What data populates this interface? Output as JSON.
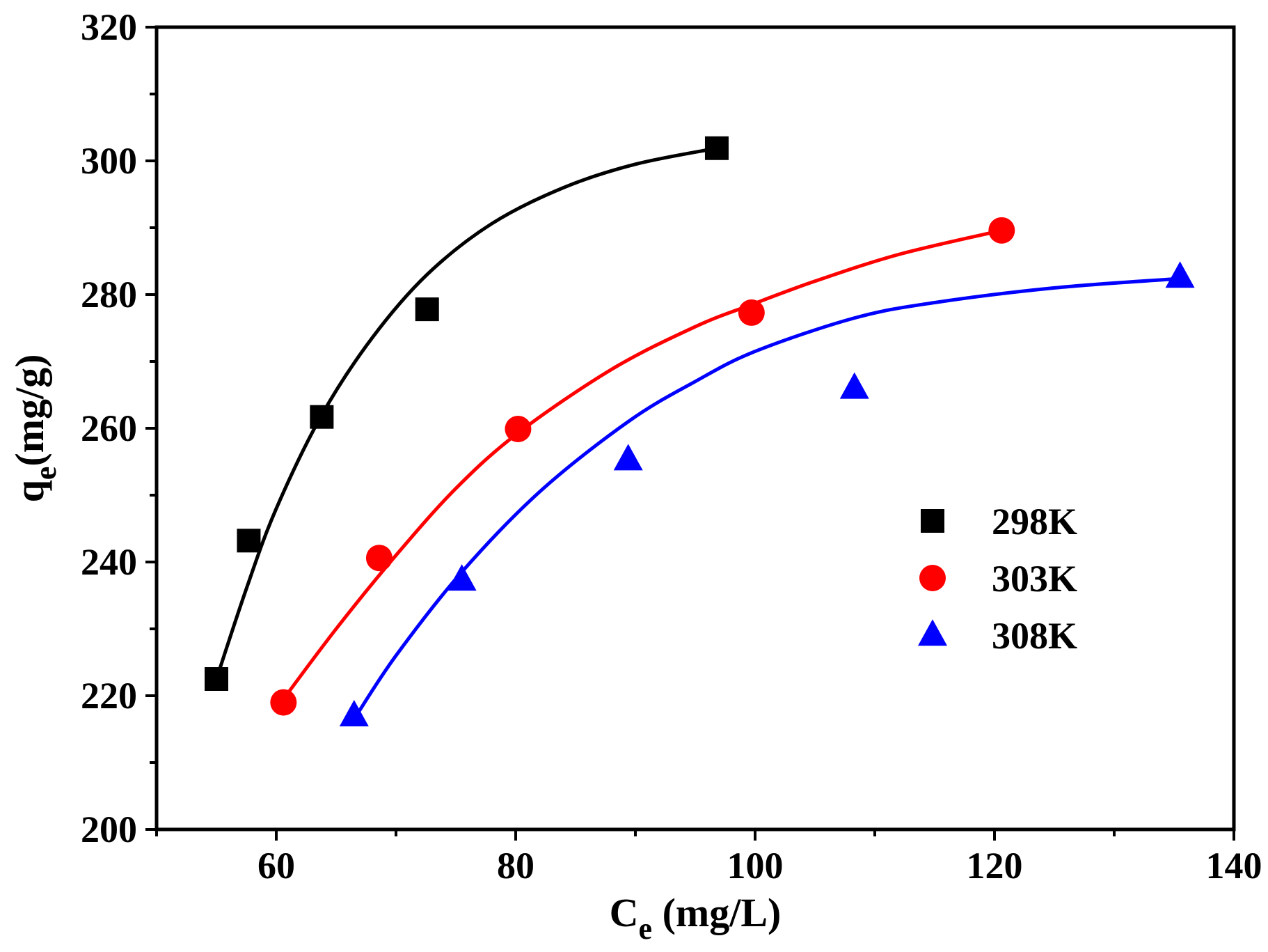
{
  "chart_data": {
    "type": "scatter",
    "xlabel": {
      "main": "C",
      "sub": "e",
      "rest": " (mg/L)"
    },
    "ylabel": {
      "main": "q",
      "sub": "e",
      "rest": "(mg/g)"
    },
    "xlim": [
      50,
      140
    ],
    "ylim": [
      200,
      320
    ],
    "x_ticks": [
      60,
      80,
      100,
      120,
      140
    ],
    "y_ticks": [
      200,
      220,
      240,
      260,
      280,
      300,
      320
    ],
    "x_tick_labels": [
      "60",
      "80",
      "100",
      "120",
      "140"
    ],
    "y_tick_labels": [
      "200",
      "220",
      "240",
      "260",
      "280",
      "300",
      "320"
    ],
    "legend_position": "center-right",
    "series": [
      {
        "name": "298K",
        "color": "#000000",
        "marker": "square",
        "x": [
          55.0,
          57.7,
          63.8,
          72.6,
          96.8
        ],
        "y": [
          222.5,
          243.2,
          261.7,
          277.8,
          301.9
        ],
        "fit": {
          "x": [
            55.0,
            57.5,
            60.0,
            63.8,
            68.0,
            72.6,
            78.0,
            84.0,
            90.0,
            96.8
          ],
          "y": [
            222.5,
            236.0,
            248.0,
            262.0,
            273.5,
            283.0,
            290.6,
            296.0,
            299.5,
            301.9
          ]
        }
      },
      {
        "name": "303K",
        "color": "#ff0000",
        "marker": "circle",
        "x": [
          60.6,
          68.6,
          80.2,
          99.7,
          120.6
        ],
        "y": [
          219.0,
          240.6,
          259.9,
          277.3,
          289.6
        ],
        "fit": {
          "x": [
            60.6,
            65.0,
            70.0,
            75.0,
            80.2,
            88.0,
            95.0,
            99.7,
            105.0,
            112.0,
            120.6
          ],
          "y": [
            219.5,
            230.0,
            241.0,
            251.0,
            259.3,
            268.8,
            275.2,
            278.5,
            282.0,
            286.0,
            289.6
          ]
        }
      },
      {
        "name": "308K",
        "color": "#0000ff",
        "marker": "triangle",
        "x": [
          66.5,
          75.5,
          89.4,
          108.3,
          135.5
        ],
        "y": [
          217.0,
          237.3,
          255.3,
          266.0,
          282.6
        ],
        "fit": {
          "x": [
            66.5,
            70.0,
            75.5,
            82.0,
            89.4,
            95.0,
            100.0,
            108.3,
            115.0,
            125.0,
            135.5
          ],
          "y": [
            216.5,
            226.0,
            238.5,
            250.5,
            261.0,
            267.0,
            271.5,
            276.5,
            278.8,
            281.0,
            282.4
          ]
        }
      }
    ]
  }
}
